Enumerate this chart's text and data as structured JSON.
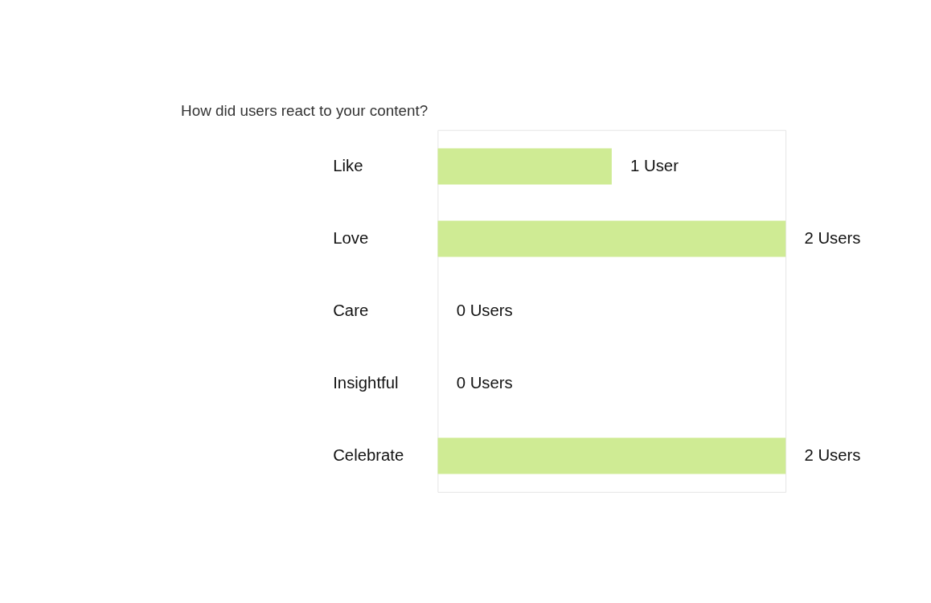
{
  "chart_data": {
    "type": "bar",
    "orientation": "horizontal",
    "title": "How did users react to your content?",
    "categories": [
      "Like",
      "Love",
      "Care",
      "Insightful",
      "Celebrate"
    ],
    "values": [
      1,
      2,
      0,
      0,
      2
    ],
    "value_labels": [
      "1 User",
      "2 Users",
      "0 Users",
      "0 Users",
      "2 Users"
    ],
    "color": "#cfeb94"
  }
}
